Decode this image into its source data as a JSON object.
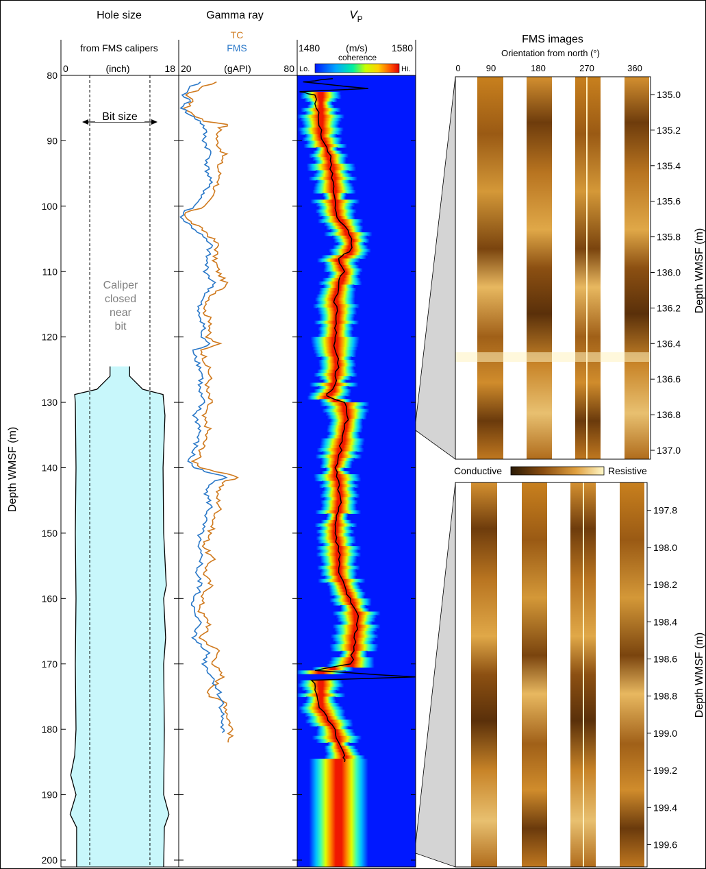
{
  "colors": {
    "tc": "#d07a1e",
    "fms": "#2a78c8",
    "caliper_fill": "#c8f7fb",
    "frame": "#000000",
    "caliper_note": "#7f7f7f",
    "wedge_fill": "#d4d4d4"
  },
  "chart_data": [
    {
      "type": "area",
      "panel": "hole-size",
      "title": "Hole size",
      "subtitle": "from FMS calipers",
      "xlabel": "(inch)",
      "ylabel": "Depth WMSF (m)",
      "xlim": [
        0,
        18
      ],
      "ylim": [
        80,
        200
      ],
      "x_ticks": [
        "0",
        "18"
      ],
      "y_ticks": [
        "80",
        "90",
        "100",
        "110",
        "120",
        "130",
        "140",
        "150",
        "160",
        "170",
        "180",
        "190",
        "200"
      ],
      "y_tick_values": [
        80,
        90,
        100,
        110,
        120,
        130,
        140,
        150,
        160,
        170,
        180,
        190,
        200
      ],
      "bit_size_label": "Bit size",
      "bit_size_inches": [
        4.4,
        13.6
      ],
      "caliper_note": [
        "Caliper",
        "closed",
        "near",
        "bit"
      ],
      "caliper_top_m": 124.5,
      "caliper_left_in": [
        [
          124.5,
          7.5
        ],
        [
          126,
          7.5
        ],
        [
          128,
          5.5
        ],
        [
          128.8,
          2.1
        ],
        [
          130,
          2.2
        ],
        [
          140,
          2.3
        ],
        [
          150,
          2.2
        ],
        [
          160,
          2.3
        ],
        [
          170,
          2.2
        ],
        [
          180,
          2.3
        ],
        [
          184,
          2.1
        ],
        [
          187,
          1.5
        ],
        [
          190,
          2.3
        ],
        [
          193,
          1.4
        ],
        [
          195,
          2.4
        ],
        [
          200,
          2.4
        ]
      ],
      "caliper_right_in": [
        [
          124.5,
          10.5
        ],
        [
          126,
          10.5
        ],
        [
          128,
          12.5
        ],
        [
          128.8,
          15.6
        ],
        [
          132,
          15.9
        ],
        [
          140,
          15.6
        ],
        [
          150,
          15.7
        ],
        [
          158,
          16.1
        ],
        [
          160,
          15.7
        ],
        [
          166,
          16.0
        ],
        [
          170,
          15.7
        ],
        [
          180,
          15.8
        ],
        [
          190,
          15.7
        ],
        [
          193,
          16.5
        ],
        [
          195,
          15.8
        ],
        [
          200,
          15.7
        ]
      ]
    },
    {
      "type": "line",
      "panel": "gamma-ray",
      "title": "Gamma ray",
      "xlabel": "(gAPI)",
      "xlim": [
        20,
        80
      ],
      "ylim": [
        80,
        200
      ],
      "x_ticks": [
        "20",
        "80"
      ],
      "series": [
        {
          "name": "TC",
          "color": "#d07a1e",
          "points": [
            [
              81,
              38
            ],
            [
              82,
              31
            ],
            [
              83,
              24
            ],
            [
              84,
              28
            ],
            [
              85,
              23
            ],
            [
              86,
              28
            ],
            [
              87,
              33
            ],
            [
              87.5,
              46
            ],
            [
              88,
              41
            ],
            [
              90,
              39
            ],
            [
              92,
              43
            ],
            [
              94,
              40
            ],
            [
              96,
              41
            ],
            [
              98,
              37
            ],
            [
              100,
              33
            ],
            [
              101,
              24
            ],
            [
              102,
              24
            ],
            [
              104,
              34
            ],
            [
              106,
              40
            ],
            [
              108,
              38
            ],
            [
              110,
              40
            ],
            [
              112,
              44
            ],
            [
              114,
              36
            ],
            [
              116,
              33
            ],
            [
              118,
              37
            ],
            [
              120,
              34
            ],
            [
              121,
              40
            ],
            [
              122,
              32
            ],
            [
              124,
              34
            ],
            [
              126,
              36
            ],
            [
              128,
              34
            ],
            [
              130,
              36
            ],
            [
              132,
              32
            ],
            [
              134,
              35
            ],
            [
              136,
              33
            ],
            [
              138,
              31
            ],
            [
              139,
              28
            ],
            [
              140,
              32
            ],
            [
              141.5,
              50
            ],
            [
              142,
              44
            ],
            [
              144,
              39
            ],
            [
              146,
              41
            ],
            [
              148,
              38
            ],
            [
              150,
              36
            ],
            [
              152,
              33
            ],
            [
              154,
              37
            ],
            [
              156,
              33
            ],
            [
              158,
              36
            ],
            [
              160,
              32
            ],
            [
              162,
              31
            ],
            [
              164,
              36
            ],
            [
              166,
              31
            ],
            [
              168,
              40
            ],
            [
              170,
              38
            ],
            [
              172,
              42
            ],
            [
              174,
              36
            ],
            [
              175,
              36
            ],
            [
              176,
              44
            ],
            [
              178,
              45
            ],
            [
              180,
              47
            ],
            [
              182,
              45
            ]
          ]
        },
        {
          "name": "FMS",
          "color": "#2a78c8",
          "points": [
            [
              81,
              30
            ],
            [
              82,
              25
            ],
            [
              83,
              23
            ],
            [
              84,
              25
            ],
            [
              85,
              22
            ],
            [
              86,
              25
            ],
            [
              87,
              31
            ],
            [
              88,
              33
            ],
            [
              90,
              33
            ],
            [
              92,
              36
            ],
            [
              94,
              34
            ],
            [
              96,
              36
            ],
            [
              98,
              33
            ],
            [
              100,
              28
            ],
            [
              101,
              22
            ],
            [
              102,
              22
            ],
            [
              104,
              30
            ],
            [
              106,
              36
            ],
            [
              108,
              34
            ],
            [
              110,
              34
            ],
            [
              112,
              38
            ],
            [
              114,
              32
            ],
            [
              116,
              29
            ],
            [
              118,
              33
            ],
            [
              120,
              31
            ],
            [
              121,
              36
            ],
            [
              122,
              28
            ],
            [
              124,
              30
            ],
            [
              126,
              32
            ],
            [
              128,
              30
            ],
            [
              130,
              32
            ],
            [
              132,
              28
            ],
            [
              134,
              31
            ],
            [
              136,
              29
            ],
            [
              138,
              27
            ],
            [
              139,
              25
            ],
            [
              140,
              28
            ],
            [
              141.5,
              44
            ],
            [
              142,
              38
            ],
            [
              144,
              34
            ],
            [
              146,
              36
            ],
            [
              148,
              33
            ],
            [
              150,
              31
            ],
            [
              152,
              29
            ],
            [
              154,
              32
            ],
            [
              156,
              29
            ],
            [
              158,
              31
            ],
            [
              160,
              28
            ],
            [
              162,
              27
            ],
            [
              164,
              31
            ],
            [
              166,
              27
            ],
            [
              168,
              35
            ],
            [
              170,
              33
            ],
            [
              172,
              37
            ],
            [
              174,
              40
            ],
            [
              176,
              42
            ],
            [
              178,
              42
            ],
            [
              180,
              42
            ],
            [
              180.5,
              42
            ]
          ]
        }
      ]
    },
    {
      "type": "heatmap",
      "panel": "vp",
      "title": "V",
      "title_subscript": "P",
      "xlabel": "(m/s)",
      "xlim": [
        1480,
        1580
      ],
      "ylim": [
        80,
        200
      ],
      "x_ticks": [
        "1480",
        "1580"
      ],
      "colorbar_label": "coherence",
      "colorbar_low": "Lo.",
      "colorbar_high": "Hi.",
      "vp_curve": [
        [
          80.5,
          1510
        ],
        [
          81,
          1485
        ],
        [
          82,
          1540
        ],
        [
          82.5,
          1482
        ],
        [
          83,
          1495
        ],
        [
          85,
          1496
        ],
        [
          87,
          1498
        ],
        [
          89,
          1500
        ],
        [
          91,
          1505
        ],
        [
          93,
          1508
        ],
        [
          95,
          1510
        ],
        [
          97,
          1511
        ],
        [
          99,
          1512
        ],
        [
          101,
          1513
        ],
        [
          103,
          1520
        ],
        [
          105,
          1526
        ],
        [
          107,
          1524
        ],
        [
          108,
          1515
        ],
        [
          110,
          1520
        ],
        [
          112,
          1515
        ],
        [
          114,
          1512
        ],
        [
          116,
          1514
        ],
        [
          118,
          1513
        ],
        [
          120,
          1512
        ],
        [
          122,
          1512
        ],
        [
          124,
          1514
        ],
        [
          126,
          1512
        ],
        [
          128,
          1510
        ],
        [
          129,
          1505
        ],
        [
          130,
          1520
        ],
        [
          132,
          1522
        ],
        [
          134,
          1520
        ],
        [
          136,
          1518
        ],
        [
          138,
          1515
        ],
        [
          140,
          1512
        ],
        [
          142,
          1515
        ],
        [
          144,
          1516
        ],
        [
          146,
          1515
        ],
        [
          148,
          1513
        ],
        [
          150,
          1512
        ],
        [
          152,
          1515
        ],
        [
          154,
          1515
        ],
        [
          156,
          1515
        ],
        [
          158,
          1520
        ],
        [
          160,
          1525
        ],
        [
          162,
          1530
        ],
        [
          164,
          1530
        ],
        [
          166,
          1528
        ],
        [
          168,
          1528
        ],
        [
          170,
          1525
        ],
        [
          171,
          1495
        ],
        [
          172,
          1580
        ],
        [
          172.5,
          1492
        ],
        [
          174,
          1495
        ],
        [
          176,
          1498
        ],
        [
          178,
          1505
        ],
        [
          180,
          1512
        ],
        [
          182,
          1515
        ],
        [
          184,
          1520
        ],
        [
          185,
          1520
        ]
      ]
    },
    {
      "type": "heatmap",
      "panel": "fms-images",
      "title": "FMS images",
      "xlabel": "Orientation from north (°)",
      "x_ticks": [
        "0",
        "90",
        "180",
        "270",
        "360"
      ],
      "colorbar_low": "Conductive",
      "colorbar_high": "Resistive",
      "ylabel": "Depth WMSF (m)",
      "upper": {
        "ylim": [
          134.9,
          137.05
        ],
        "y_ticks": [
          "135.0",
          "135.2",
          "135.4",
          "135.6",
          "135.8",
          "136.0",
          "136.2",
          "136.4",
          "136.6",
          "136.8",
          "137.0"
        ]
      },
      "lower": {
        "ylim": [
          197.65,
          199.72
        ],
        "y_ticks": [
          "197.8",
          "198.0",
          "198.2",
          "198.4",
          "198.6",
          "198.8",
          "199.0",
          "199.2",
          "199.4",
          "199.6"
        ]
      }
    }
  ]
}
